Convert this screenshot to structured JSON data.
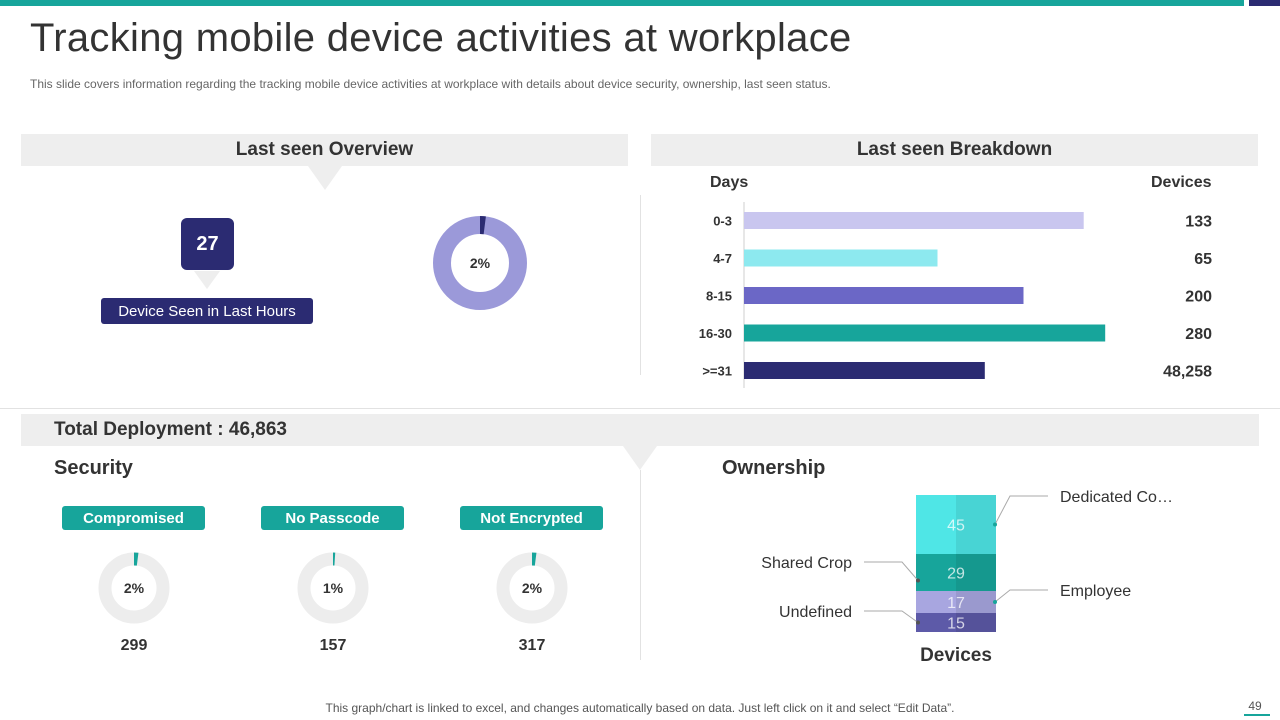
{
  "slide": {
    "title": "Tracking mobile device activities at workplace",
    "subtitle": "This slide covers information regarding the tracking mobile device activities at workplace with details about device security, ownership, last seen status.",
    "footnote": "This graph/chart is linked to excel,  and changes automatically based on data. Just left click on it and select “Edit Data”.",
    "page_number": "49",
    "colors": {
      "teal": "#17a59b",
      "navy": "#2b2b72",
      "panel": "#eeeeee"
    }
  },
  "overview": {
    "heading": "Last seen Overview",
    "device_count": "27",
    "device_label": "Device Seen in Last Hours",
    "donut_percent_label": "2%",
    "donut_percent": 2,
    "donut_colors": {
      "ring": "#9b99d9",
      "slice": "#2b2b72"
    }
  },
  "breakdown": {
    "heading": "Last seen Breakdown",
    "days_header": "Days",
    "devices_header": "Devices"
  },
  "chart_data": [
    {
      "type": "bar",
      "orientation": "horizontal",
      "categories": [
        "0-3",
        "4-7",
        "8-15",
        "16-30",
        ">=31"
      ],
      "values": [
        133,
        65,
        200,
        280,
        48258
      ],
      "value_labels": [
        "133",
        "65",
        "200",
        "280",
        "48,258"
      ],
      "bar_relative_lengths": [
        0.79,
        0.45,
        0.65,
        0.84,
        0.56
      ],
      "colors": [
        "#c9c6ef",
        "#8de9ef",
        "#6b67c6",
        "#17a59b",
        "#2b2b72"
      ]
    },
    {
      "type": "bar",
      "stacked": true,
      "categories": [
        "Devices"
      ],
      "series": [
        {
          "name": "Undefined",
          "values": [
            15
          ],
          "color": "#5d5aa8"
        },
        {
          "name": "Employee",
          "values": [
            17
          ],
          "color": "#a8a6e0"
        },
        {
          "name": "Shared Crop",
          "values": [
            29
          ],
          "color": "#17a59b"
        },
        {
          "name": "Dedicated Co…",
          "values": [
            45
          ],
          "color": "#4fe6e6"
        }
      ],
      "xlabel": "Devices"
    }
  ],
  "deployment": {
    "title": "Total Deployment : 46,863"
  },
  "security": {
    "heading": "Security",
    "items": [
      {
        "label": "Compromised",
        "percent_label": "2%",
        "percent": 2,
        "count": "299"
      },
      {
        "label": "No Passcode",
        "percent_label": "1%",
        "percent": 1,
        "count": "157"
      },
      {
        "label": "Not Encrypted",
        "percent_label": "2%",
        "percent": 2,
        "count": "317"
      }
    ]
  },
  "ownership": {
    "heading": "Ownership"
  }
}
